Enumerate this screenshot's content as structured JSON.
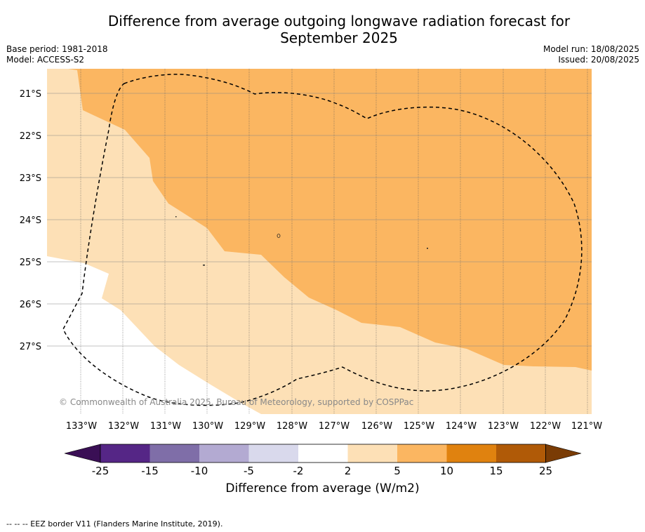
{
  "title": "Difference from average outgoing longwave radiation forecast for September 2025",
  "title_line1": "Difference from average outgoing longwave radiation forecast for",
  "title_line2": "September 2025",
  "meta": {
    "base_period": "Base period: 1981-2018",
    "model": "Model: ACCESS-S2",
    "model_run": "Model run: 18/08/2025",
    "issued": "Issued: 20/08/2025"
  },
  "map": {
    "lon_labels": [
      "133°W",
      "132°W",
      "131°W",
      "130°W",
      "129°W",
      "128°W",
      "127°W",
      "126°W",
      "125°W",
      "124°W",
      "123°W",
      "122°W",
      "121°W"
    ],
    "lat_labels": [
      "21°S",
      "22°S",
      "23°S",
      "24°S",
      "25°S",
      "26°S",
      "27°S"
    ],
    "copyright": "© Commonwealth of Australia 2025, Bureau of Meteorology, supported by COSPPac",
    "colors": {
      "band_2_5": "#fde0b6",
      "band_5_10": "#fbb661",
      "band_neutral": "#ffffff"
    }
  },
  "colorbar": {
    "title": "Difference from average (W/m2)",
    "ticks": [
      "-25",
      "-15",
      "-10",
      "-5",
      "-2",
      "2",
      "5",
      "10",
      "15",
      "25"
    ],
    "colors": [
      "#3a0f55",
      "#552686",
      "#7f6ea8",
      "#b3aad2",
      "#d9d9ec",
      "#ffffff",
      "#fde0b6",
      "#fbb661",
      "#e0820f",
      "#b05a07",
      "#7a3c05"
    ]
  },
  "footnote": "-- -- -- EEZ border V11 (Flanders Marine Institute, 2019)."
}
